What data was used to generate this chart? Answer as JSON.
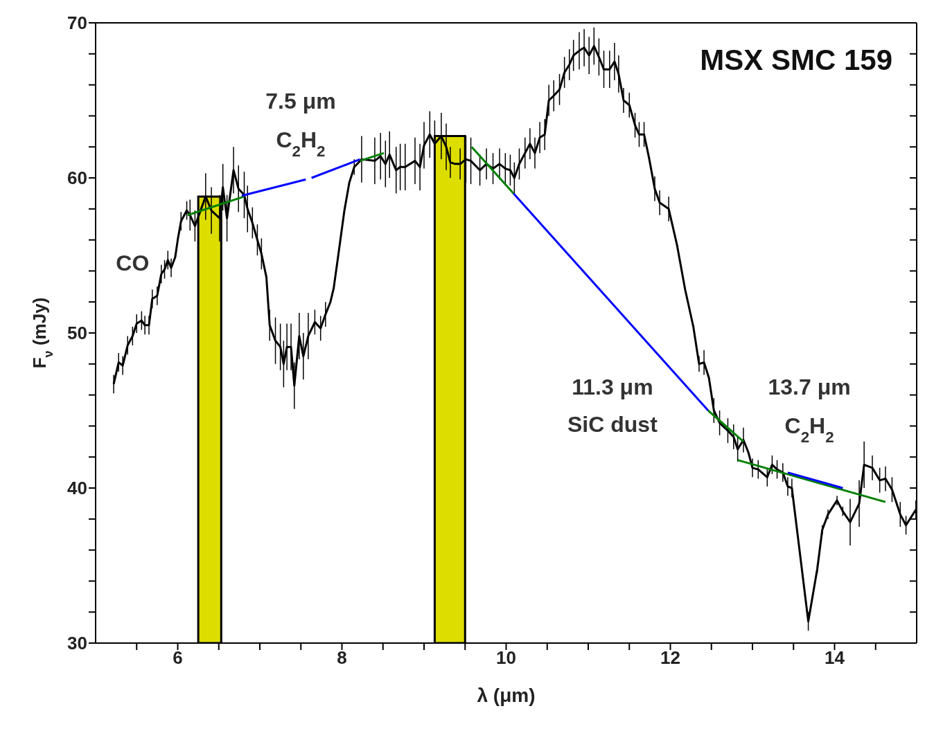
{
  "chart_data": {
    "type": "line",
    "title": "MSX SMC 159",
    "xlabel": "λ (μm)",
    "ylabel": "F$_{ν}$ (mJy)",
    "xlim": [
      5,
      15
    ],
    "ylim": [
      30,
      70
    ],
    "xticks": [
      {
        "value": 5.5,
        "label": null
      },
      6,
      {
        "value": 6.5,
        "label": null
      },
      {
        "value": 7,
        "label": null
      },
      {
        "value": 7.5,
        "label": null
      },
      8,
      {
        "value": 8.5,
        "label": null
      },
      {
        "value": 9,
        "label": null
      },
      {
        "value": 9.5,
        "label": null
      },
      10,
      {
        "value": 10.5,
        "label": null
      },
      {
        "value": 11,
        "label": null
      },
      {
        "value": 11.5,
        "label": null
      },
      12,
      {
        "value": 12.5,
        "label": null
      },
      {
        "value": 13,
        "label": null
      },
      {
        "value": 13.5,
        "label": null
      },
      14,
      {
        "value": 14.5,
        "label": null
      }
    ],
    "yticks": [
      30,
      {
        "value": 32,
        "label": null
      },
      {
        "value": 34,
        "label": null
      },
      {
        "value": 36,
        "label": null
      },
      {
        "value": 38,
        "label": null
      },
      40,
      {
        "value": 42,
        "label": null
      },
      {
        "value": 44,
        "label": null
      },
      {
        "value": 46,
        "label": null
      },
      {
        "value": 48,
        "label": null
      },
      50,
      {
        "value": 52,
        "label": null
      },
      {
        "value": 54,
        "label": null
      },
      {
        "value": 56,
        "label": null
      },
      {
        "value": 58,
        "label": null
      },
      60,
      {
        "value": 62,
        "label": null
      },
      {
        "value": 64,
        "label": null
      },
      {
        "value": 66,
        "label": null
      },
      {
        "value": 68,
        "label": null
      },
      70
    ],
    "bands": [
      {
        "axis": "x",
        "from": 6.25,
        "to": 6.53,
        "color": "#dddd00"
      },
      {
        "axis": "x",
        "from": 9.13,
        "to": 9.5,
        "color": "#dddd00"
      }
    ],
    "series": [
      {
        "color": "#000000",
        "x": [
          5.22,
          5.28,
          5.33,
          5.39,
          5.45,
          5.5,
          5.56,
          5.6,
          5.65,
          5.69,
          5.75,
          5.8,
          5.84,
          5.88,
          5.92,
          5.97,
          6.0,
          6.04,
          6.11,
          6.15,
          6.21,
          6.34,
          6.41,
          6.51,
          6.55,
          6.6,
          6.68,
          6.74,
          6.81,
          6.85,
          6.91,
          6.97,
          7.02,
          7.08,
          7.12,
          7.19,
          7.25,
          7.29,
          7.33,
          7.38,
          7.42,
          7.48,
          7.53,
          7.59,
          7.67,
          7.74,
          7.8,
          7.86,
          7.9,
          7.95,
          8.03,
          8.09,
          8.15,
          8.24,
          8.4,
          8.47,
          8.53,
          8.58,
          8.66,
          8.71,
          8.77,
          8.89,
          8.95,
          9.0,
          9.07,
          9.13,
          9.21,
          9.27,
          9.32,
          9.38,
          9.44,
          9.51,
          9.57,
          9.68,
          9.76,
          9.84,
          9.92,
          9.99,
          10.05,
          10.1,
          10.16,
          10.23,
          10.29,
          10.35,
          10.41,
          10.47,
          10.52,
          10.58,
          10.65,
          10.71,
          10.77,
          10.82,
          10.89,
          10.95,
          11.01,
          11.07,
          11.13,
          11.19,
          11.26,
          11.32,
          11.37,
          11.43,
          11.5,
          11.57,
          11.62,
          11.68,
          11.74,
          11.81,
          11.87,
          11.98,
          12.08,
          12.18,
          12.28,
          12.35,
          12.41,
          12.47,
          12.53,
          12.6,
          12.7,
          12.77,
          12.82,
          12.89,
          12.95,
          13.0,
          13.07,
          13.18,
          13.24,
          13.3,
          13.37,
          13.43,
          13.48,
          13.68,
          13.79,
          13.85,
          13.92,
          14.03,
          14.1,
          14.19,
          14.3,
          14.36,
          14.46,
          14.55,
          14.62,
          14.7,
          14.8,
          14.87,
          14.99
        ],
        "values": [
          46.7,
          48.1,
          47.9,
          49.2,
          49.8,
          50.6,
          50.8,
          50.5,
          50.5,
          52.2,
          52.4,
          53.8,
          54.1,
          54.7,
          54.2,
          54.9,
          56.0,
          57.2,
          57.9,
          57.6,
          56.9,
          58.8,
          57.9,
          57.4,
          59.4,
          57.4,
          60.5,
          59.3,
          58.9,
          58.0,
          57.1,
          56.0,
          55.1,
          53.6,
          50.5,
          49.5,
          49.1,
          48.0,
          49.1,
          49.1,
          46.6,
          49.8,
          48.5,
          49.8,
          50.7,
          50.3,
          51.2,
          52.0,
          52.9,
          54.8,
          57.9,
          59.7,
          60.7,
          61.2,
          61.1,
          61.4,
          60.9,
          61.5,
          60.5,
          60.7,
          60.7,
          61.1,
          60.7,
          62.1,
          62.8,
          62.2,
          62.7,
          62.0,
          61.0,
          60.9,
          60.9,
          61.2,
          61.1,
          60.5,
          60.9,
          60.6,
          60.9,
          60.6,
          60.5,
          60.0,
          60.9,
          61.6,
          62.2,
          61.6,
          62.6,
          62.8,
          65.0,
          65.3,
          65.7,
          66.8,
          67.3,
          67.9,
          68.2,
          68.4,
          67.9,
          68.5,
          67.8,
          67.0,
          67.0,
          67.5,
          66.7,
          65.0,
          64.7,
          63.4,
          62.8,
          62.8,
          61.3,
          59.3,
          58.4,
          58.0,
          55.7,
          52.8,
          50.4,
          48.0,
          48.1,
          47.1,
          45.0,
          44.2,
          43.7,
          43.3,
          42.5,
          43.1,
          42.3,
          41.3,
          41.2,
          40.7,
          41.5,
          41.2,
          41.0,
          40.1,
          40.0,
          31.4,
          34.8,
          37.3,
          38.3,
          39.2,
          38.5,
          37.8,
          39.0,
          41.5,
          41.3,
          40.5,
          40.6,
          39.9,
          38.3,
          37.6,
          38.6
        ],
        "errors": [
          0.6,
          0.6,
          0.6,
          0.6,
          0.6,
          0.6,
          0.6,
          0.6,
          0.6,
          0.6,
          0.6,
          0.6,
          0.6,
          0.6,
          0.6,
          null,
          null,
          0.6,
          0.6,
          1.0,
          1.0,
          1.5,
          1.5,
          1.5,
          1.5,
          1.5,
          1.5,
          1.5,
          1.5,
          1.5,
          1.0,
          1.0,
          1.0,
          null,
          1.0,
          1.5,
          1.5,
          1.5,
          1.5,
          1.5,
          1.5,
          1.5,
          1.5,
          1.5,
          0.8,
          0.8,
          0.8,
          null,
          null,
          null,
          null,
          null,
          0.5,
          1.5,
          1.5,
          1.5,
          1.5,
          1.5,
          1.5,
          1.5,
          1.5,
          1.5,
          1.5,
          1.5,
          1.5,
          1.5,
          1.5,
          1.5,
          1.0,
          null,
          1.0,
          1.5,
          1.5,
          1.0,
          1.0,
          1.0,
          1.0,
          1.0,
          1.0,
          1.0,
          1.0,
          1.0,
          1.0,
          1.0,
          1.0,
          1.0,
          1.0,
          1.0,
          1.0,
          1.0,
          1.0,
          1.0,
          1.2,
          1.2,
          1.2,
          1.2,
          1.2,
          1.2,
          1.2,
          1.2,
          1.2,
          0.8,
          0.8,
          0.8,
          0.8,
          0.8,
          null,
          0.8,
          0.8,
          0.8,
          null,
          null,
          null,
          0.5,
          0.8,
          null,
          0.8,
          0.8,
          0.8,
          0.8,
          0.8,
          0.8,
          null,
          0.6,
          0.6,
          0.6,
          0.6,
          0.6,
          0.6,
          0.6,
          0.6,
          0.6,
          0.3,
          0.3,
          0.3,
          0.3,
          0.3,
          1.5,
          1.5,
          1.5,
          0.8,
          0.8,
          0.8,
          0.8,
          0.8,
          0.6,
          0.6
        ]
      },
      {
        "color": "#008000",
        "x": [
          6.12,
          6.81
        ],
        "values": [
          57.6,
          58.8
        ]
      },
      {
        "color": "#0000ff",
        "x": [
          6.78,
          7.56,
          7.6,
          7.63,
          8.22
        ],
        "values": [
          58.85,
          59.9,
          null,
          60.0,
          61.2
        ]
      },
      {
        "color": "#008000",
        "x": [
          8.22,
          8.51
        ],
        "values": [
          61.1,
          61.6
        ]
      },
      {
        "color": "#008000",
        "x": [
          9.58,
          10.09
        ],
        "values": [
          62.0,
          59.0
        ]
      },
      {
        "color": "#0000ff",
        "x": [
          10.09,
          12.46
        ],
        "values": [
          59.0,
          45.0
        ]
      },
      {
        "color": "#008000",
        "x": [
          12.46,
          12.89
        ],
        "values": [
          45.0,
          43.0
        ]
      },
      {
        "color": "#008000",
        "x": [
          12.82,
          14.62
        ],
        "values": [
          41.8,
          39.1
        ]
      },
      {
        "color": "#0000ff",
        "x": [
          13.43,
          14.1
        ],
        "values": [
          41.0,
          40.0
        ]
      }
    ],
    "annotations": [
      "CO",
      "7.5 μm",
      "C$_{2}$H$_{2}$",
      "11.3 μm",
      "SiC dust",
      "13.7 μm",
      "C$_{2}$H$_{2}$"
    ]
  }
}
